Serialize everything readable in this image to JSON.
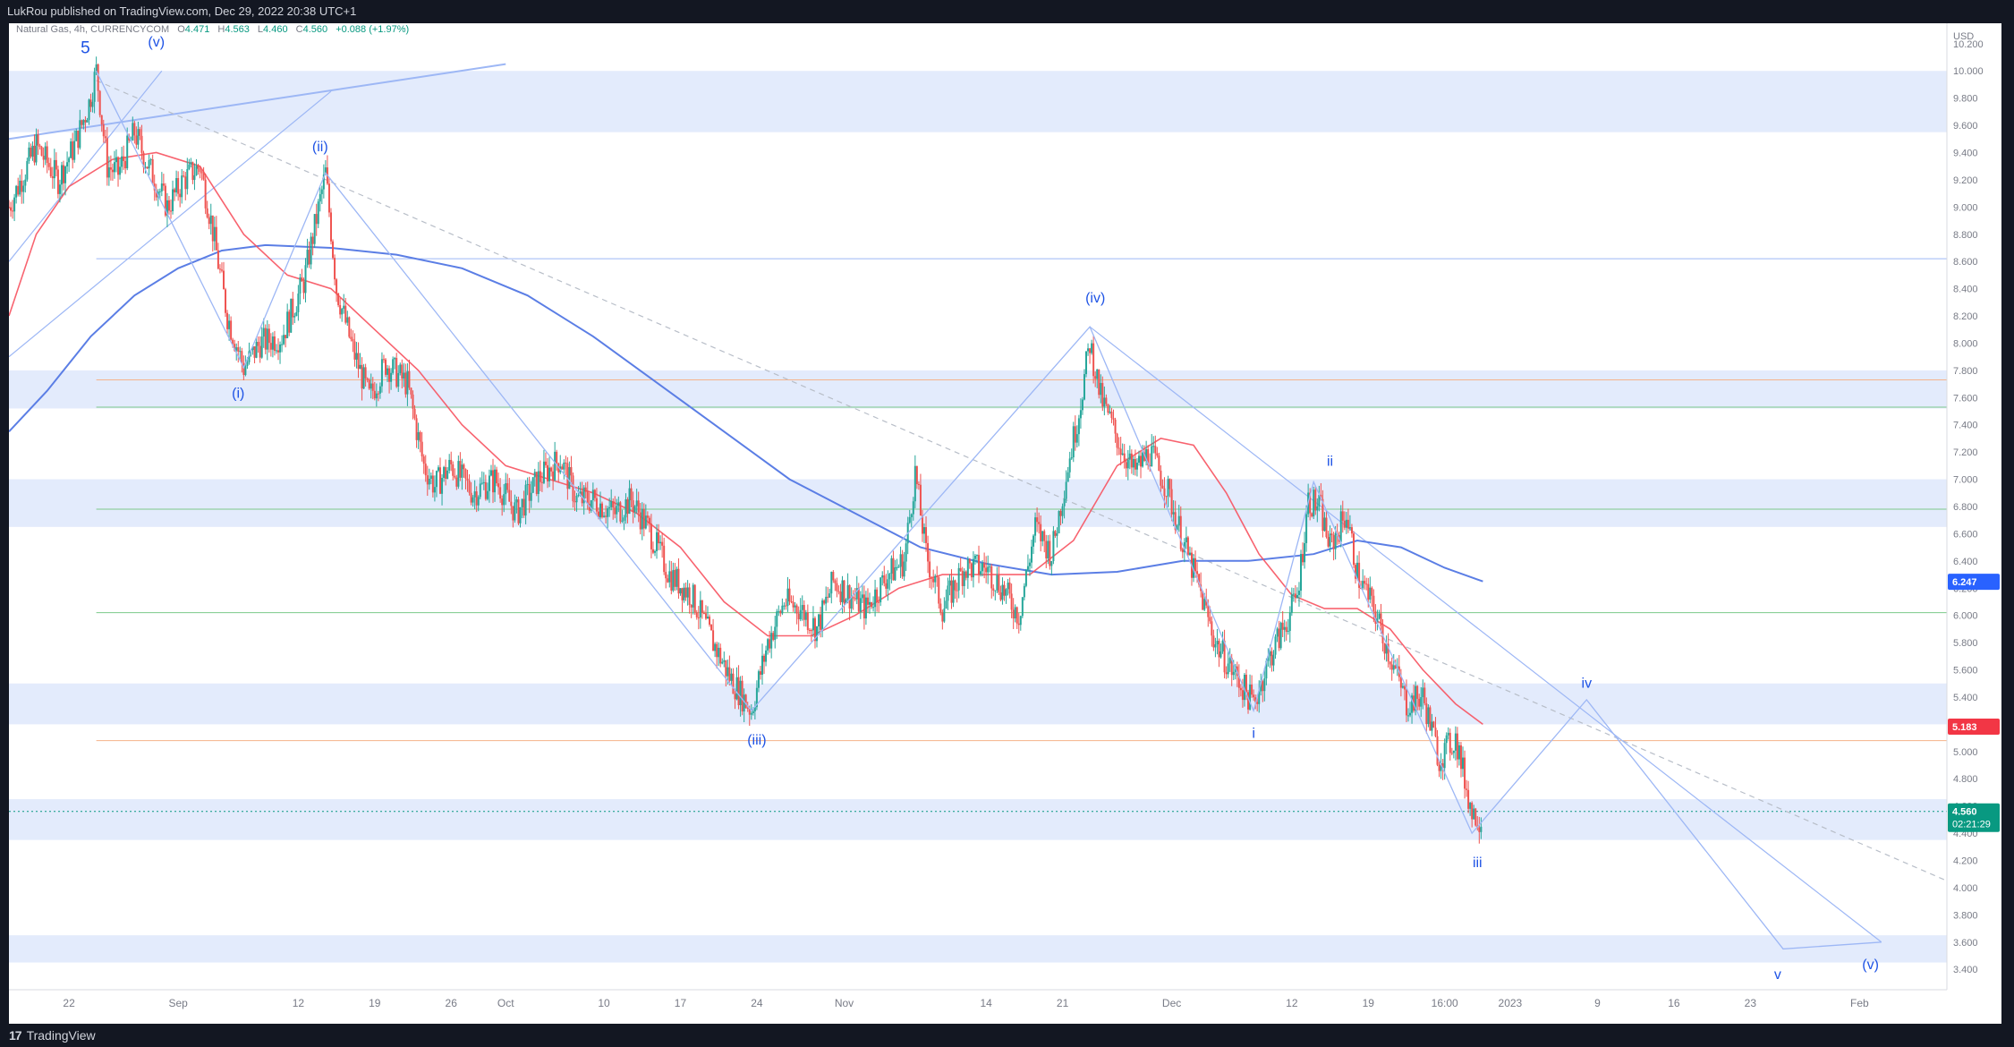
{
  "header": {
    "published": "LukRou published on TradingView.com, Dec 29, 2022 20:38 UTC+1"
  },
  "legend": {
    "symbol": "Natural Gas, 4h, CURRENCYCOM",
    "o_label": "O",
    "o_value": "4.471",
    "h_label": "H",
    "h_value": "4.563",
    "l_label": "L",
    "l_value": "4.460",
    "c_label": "C",
    "c_value": "4.560",
    "change": "+0.088 (+1.97%)"
  },
  "footer": {
    "brand_mark": "17",
    "brand": "TradingView"
  },
  "colors": {
    "up": "#26a69a",
    "down": "#ef5350",
    "wave": "#1e53e5",
    "ma_fast": "#f7525f",
    "ma_slow": "#5b7ee5",
    "zone": "#e3ebfc"
  },
  "chart_data": {
    "type": "candlestick",
    "title": "",
    "currency": "USD",
    "ylim": [
      3.25,
      10.35
    ],
    "y_ticks": [
      "3.400",
      "3.600",
      "3.800",
      "4.000",
      "4.200",
      "4.400",
      "4.600",
      "4.800",
      "5.000",
      "5.200",
      "5.400",
      "5.600",
      "5.800",
      "6.000",
      "6.200",
      "6.400",
      "6.600",
      "6.800",
      "7.000",
      "7.200",
      "7.400",
      "7.600",
      "7.800",
      "8.000",
      "8.200",
      "8.400",
      "8.600",
      "8.800",
      "9.000",
      "9.200",
      "9.400",
      "9.600",
      "9.800",
      "10.000",
      "10.200"
    ],
    "x_ticks": [
      {
        "label": "22",
        "day": 0
      },
      {
        "label": "Sep",
        "day": 10
      },
      {
        "label": "12",
        "day": 21
      },
      {
        "label": "19",
        "day": 28
      },
      {
        "label": "26",
        "day": 35
      },
      {
        "label": "Oct",
        "day": 40
      },
      {
        "label": "10",
        "day": 49
      },
      {
        "label": "17",
        "day": 56
      },
      {
        "label": "24",
        "day": 63
      },
      {
        "label": "Nov",
        "day": 71
      },
      {
        "label": "14",
        "day": 84
      },
      {
        "label": "21",
        "day": 91
      },
      {
        "label": "Dec",
        "day": 101
      },
      {
        "label": "12",
        "day": 112
      },
      {
        "label": "19",
        "day": 119
      },
      {
        "label": "16:00",
        "day": 126
      },
      {
        "label": "2023",
        "day": 132
      },
      {
        "label": "9",
        "day": 140
      },
      {
        "label": "16",
        "day": 147
      },
      {
        "label": "23",
        "day": 154
      },
      {
        "label": "Feb",
        "day": 164
      }
    ],
    "x_range_days": [
      -5.5,
      172
    ],
    "price_badges": [
      {
        "value": "6.247",
        "color": "#2962ff"
      },
      {
        "value": "5.183",
        "color": "#f23645"
      },
      {
        "value": "4.560",
        "color": "#089981",
        "sub": "02:21:29"
      }
    ],
    "zones": [
      [
        9.55,
        10.0
      ],
      [
        7.52,
        7.8
      ],
      [
        6.65,
        7.0
      ],
      [
        5.2,
        5.5
      ],
      [
        4.35,
        4.65
      ],
      [
        3.45,
        3.65
      ]
    ],
    "hlines": [
      {
        "price": 8.62,
        "color": "#9db7f5"
      },
      {
        "price": 7.73,
        "color": "#f5b38a"
      },
      {
        "price": 7.53,
        "color": "#7cc98a"
      },
      {
        "price": 6.78,
        "color": "#7cc98a"
      },
      {
        "price": 6.02,
        "color": "#7cc98a"
      },
      {
        "price": 5.08,
        "color": "#f5b38a"
      }
    ],
    "current_price": 4.56,
    "wave_points": [
      {
        "day": 2.5,
        "price": 10.0
      },
      {
        "day": 16,
        "price": 7.82
      },
      {
        "day": 23.5,
        "price": 9.25
      },
      {
        "day": 62.5,
        "price": 5.3
      },
      {
        "day": 93.5,
        "price": 8.12
      },
      {
        "day": 108.5,
        "price": 5.3
      },
      {
        "day": 114,
        "price": 6.98
      },
      {
        "day": 128.5,
        "price": 4.4
      },
      {
        "day": 139,
        "price": 5.38
      },
      {
        "day": 157,
        "price": 3.55
      },
      {
        "day": 166,
        "price": 3.6
      }
    ],
    "wave_labels": [
      {
        "text": "5",
        "day": 1.5,
        "price": 10.13,
        "size": 19
      },
      {
        "text": "(v)",
        "day": 8,
        "price": 10.18,
        "size": 16
      },
      {
        "text": "(ii)",
        "day": 23,
        "price": 9.41,
        "size": 16
      },
      {
        "text": "(i)",
        "day": 15.5,
        "price": 7.6,
        "size": 16
      },
      {
        "text": "(iii)",
        "day": 63,
        "price": 5.05,
        "size": 16
      },
      {
        "text": "(iv)",
        "day": 94,
        "price": 8.3,
        "size": 16
      },
      {
        "text": "i",
        "day": 108.5,
        "price": 5.1,
        "size": 16
      },
      {
        "text": "ii",
        "day": 115.5,
        "price": 7.1,
        "size": 16
      },
      {
        "text": "iii",
        "day": 129,
        "price": 4.15,
        "size": 16
      },
      {
        "text": "iv",
        "day": 139,
        "price": 5.47,
        "size": 16
      },
      {
        "text": "v",
        "day": 156.5,
        "price": 3.33,
        "size": 16
      },
      {
        "text": "(v)",
        "day": 165,
        "price": 3.4,
        "size": 16
      }
    ],
    "candle_path": [
      [
        -5.5,
        9.0
      ],
      [
        -3,
        9.45
      ],
      [
        -1,
        9.2
      ],
      [
        0.5,
        9.45
      ],
      [
        1.8,
        9.75
      ],
      [
        2.5,
        10.0
      ],
      [
        3.5,
        9.3
      ],
      [
        4.5,
        9.25
      ],
      [
        6,
        9.55
      ],
      [
        7,
        9.35
      ],
      [
        9,
        9.0
      ],
      [
        10.5,
        9.2
      ],
      [
        12,
        9.3
      ],
      [
        13,
        8.9
      ],
      [
        14.5,
        8.2
      ],
      [
        16,
        7.82
      ],
      [
        17.5,
        8.0
      ],
      [
        19.5,
        8.05
      ],
      [
        21.5,
        8.45
      ],
      [
        23.5,
        9.25
      ],
      [
        24.5,
        8.4
      ],
      [
        26,
        7.95
      ],
      [
        27.5,
        7.6
      ],
      [
        29,
        7.85
      ],
      [
        31,
        7.7
      ],
      [
        32.5,
        7.1
      ],
      [
        33.5,
        6.95
      ],
      [
        35,
        7.1
      ],
      [
        37,
        6.9
      ],
      [
        39,
        7.0
      ],
      [
        41,
        6.75
      ],
      [
        43,
        7.0
      ],
      [
        45,
        7.15
      ],
      [
        46.5,
        6.85
      ],
      [
        48,
        6.85
      ],
      [
        50,
        6.75
      ],
      [
        51.5,
        6.85
      ],
      [
        53,
        6.65
      ],
      [
        55,
        6.3
      ],
      [
        57,
        6.15
      ],
      [
        59,
        5.8
      ],
      [
        60.5,
        5.55
      ],
      [
        62.5,
        5.3
      ],
      [
        64,
        5.8
      ],
      [
        65.5,
        6.1
      ],
      [
        67,
        6.05
      ],
      [
        68.5,
        5.9
      ],
      [
        70,
        6.25
      ],
      [
        71.5,
        6.15
      ],
      [
        73,
        6.05
      ],
      [
        75,
        6.3
      ],
      [
        76.5,
        6.4
      ],
      [
        77.5,
        7.05
      ],
      [
        78.5,
        6.45
      ],
      [
        80,
        6.05
      ],
      [
        82,
        6.35
      ],
      [
        84,
        6.35
      ],
      [
        85.5,
        6.2
      ],
      [
        87,
        6.0
      ],
      [
        88.5,
        6.65
      ],
      [
        90,
        6.45
      ],
      [
        91.5,
        7.1
      ],
      [
        92.5,
        7.5
      ],
      [
        93.5,
        8.0
      ],
      [
        94.5,
        7.6
      ],
      [
        96,
        7.3
      ],
      [
        97.5,
        7.05
      ],
      [
        99,
        7.2
      ],
      [
        100.5,
        6.95
      ],
      [
        102,
        6.55
      ],
      [
        103.5,
        6.2
      ],
      [
        105,
        5.8
      ],
      [
        106.5,
        5.6
      ],
      [
        108.5,
        5.35
      ],
      [
        110,
        5.7
      ],
      [
        111.5,
        5.95
      ],
      [
        112.5,
        6.15
      ],
      [
        113.5,
        6.85
      ],
      [
        114.5,
        6.8
      ],
      [
        115.5,
        6.5
      ],
      [
        117,
        6.75
      ],
      [
        118,
        6.3
      ],
      [
        119.5,
        6.05
      ],
      [
        121,
        5.7
      ],
      [
        122.5,
        5.35
      ],
      [
        124,
        5.4
      ],
      [
        125.5,
        4.95
      ],
      [
        127,
        5.1
      ],
      [
        128.5,
        4.55
      ],
      [
        129.5,
        4.5
      ]
    ],
    "ma_fast": [
      [
        -5.5,
        8.2
      ],
      [
        -3,
        8.8
      ],
      [
        0,
        9.15
      ],
      [
        4,
        9.35
      ],
      [
        8,
        9.4
      ],
      [
        12,
        9.3
      ],
      [
        16,
        8.8
      ],
      [
        20,
        8.5
      ],
      [
        24,
        8.4
      ],
      [
        28,
        8.1
      ],
      [
        32,
        7.8
      ],
      [
        36,
        7.4
      ],
      [
        40,
        7.1
      ],
      [
        44,
        7.0
      ],
      [
        48,
        6.9
      ],
      [
        52,
        6.75
      ],
      [
        56,
        6.5
      ],
      [
        60,
        6.1
      ],
      [
        64,
        5.85
      ],
      [
        68,
        5.85
      ],
      [
        72,
        6.0
      ],
      [
        76,
        6.2
      ],
      [
        80,
        6.3
      ],
      [
        84,
        6.3
      ],
      [
        88,
        6.3
      ],
      [
        92,
        6.55
      ],
      [
        96,
        7.1
      ],
      [
        100,
        7.3
      ],
      [
        103,
        7.25
      ],
      [
        106,
        6.9
      ],
      [
        109,
        6.45
      ],
      [
        112,
        6.15
      ],
      [
        115,
        6.05
      ],
      [
        118,
        6.05
      ],
      [
        121,
        5.9
      ],
      [
        124,
        5.6
      ],
      [
        127,
        5.35
      ],
      [
        129.5,
        5.2
      ]
    ],
    "ma_slow": [
      [
        -5.5,
        7.35
      ],
      [
        -2,
        7.65
      ],
      [
        2,
        8.05
      ],
      [
        6,
        8.35
      ],
      [
        10,
        8.55
      ],
      [
        14,
        8.68
      ],
      [
        18,
        8.72
      ],
      [
        24,
        8.7
      ],
      [
        30,
        8.65
      ],
      [
        36,
        8.55
      ],
      [
        42,
        8.35
      ],
      [
        48,
        8.05
      ],
      [
        54,
        7.7
      ],
      [
        60,
        7.35
      ],
      [
        66,
        7.0
      ],
      [
        72,
        6.75
      ],
      [
        78,
        6.5
      ],
      [
        84,
        6.38
      ],
      [
        90,
        6.3
      ],
      [
        96,
        6.32
      ],
      [
        102,
        6.4
      ],
      [
        108,
        6.4
      ],
      [
        114,
        6.45
      ],
      [
        118,
        6.55
      ],
      [
        122,
        6.5
      ],
      [
        126,
        6.35
      ],
      [
        129.5,
        6.25
      ]
    ],
    "trend_lines": [
      {
        "from": [
          -5.5,
          9.5
        ],
        "to": [
          40,
          10.05
        ],
        "color": "#9db7f5",
        "width": 2
      },
      {
        "from": [
          -5.5,
          7.9
        ],
        "to": [
          24,
          9.85
        ],
        "color": "#9db7f5",
        "width": 1.2
      },
      {
        "from": [
          -5.5,
          8.6
        ],
        "to": [
          8.5,
          10.0
        ],
        "color": "#9db7f5",
        "width": 1.2
      },
      {
        "from": [
          2.5,
          9.93
        ],
        "to": [
          172,
          4.05
        ],
        "color": "#b8bec8",
        "width": 1.2,
        "dash": true
      },
      {
        "from": [
          93.5,
          8.12
        ],
        "to": [
          166,
          3.6
        ],
        "color": "#9db7f5",
        "width": 1.2
      }
    ]
  }
}
